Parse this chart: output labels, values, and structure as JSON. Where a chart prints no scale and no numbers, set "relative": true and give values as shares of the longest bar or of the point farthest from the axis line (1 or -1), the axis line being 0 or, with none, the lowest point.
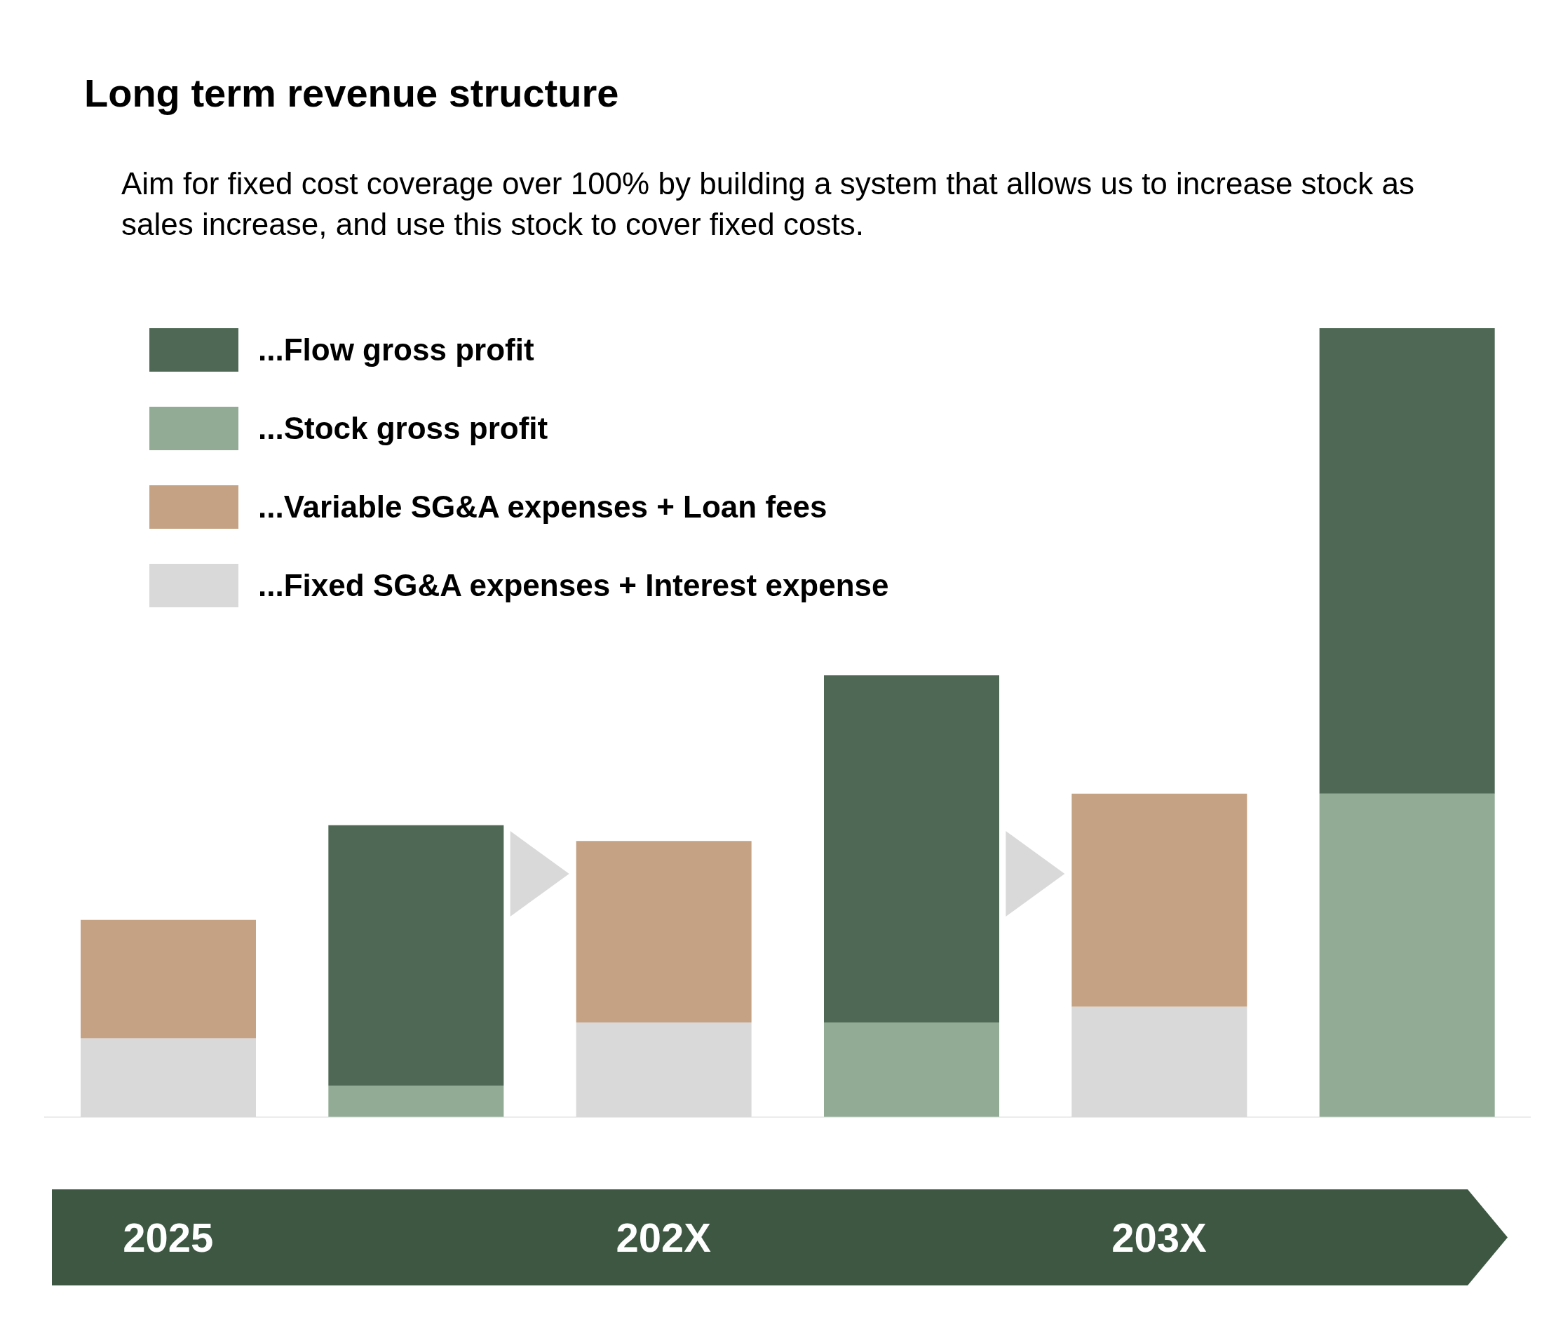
{
  "chart_data": {
    "type": "bar",
    "title": "Long term revenue structure",
    "subtitle": "Aim for fixed cost coverage over 100% by building a system that allows us to increase stock as sales increase, and use this stock to cover fixed costs.",
    "categories": [
      "2025",
      null,
      "202X",
      null,
      "203X",
      null
    ],
    "relative": true,
    "stacked": true,
    "legend": "top left",
    "series": [
      {
        "name": "...Fixed SG&A expenses + Interest expense",
        "color": "#d9d9d9",
        "values": [
          0.1,
          null,
          0.12,
          null,
          0.14,
          null
        ]
      },
      {
        "name": "...Variable SG&A expenses + Loan fees",
        "color": "#c4a283",
        "values": [
          0.15,
          null,
          0.23,
          null,
          0.27,
          null
        ]
      },
      {
        "name": "...Stock gross profit",
        "color": "#92ab94",
        "values": [
          null,
          0.04,
          null,
          0.12,
          null,
          0.41
        ]
      },
      {
        "name": "...Flow gross profit",
        "color": "#4f6855",
        "values": [
          null,
          0.33,
          null,
          0.44,
          null,
          0.59
        ]
      }
    ]
  }
}
